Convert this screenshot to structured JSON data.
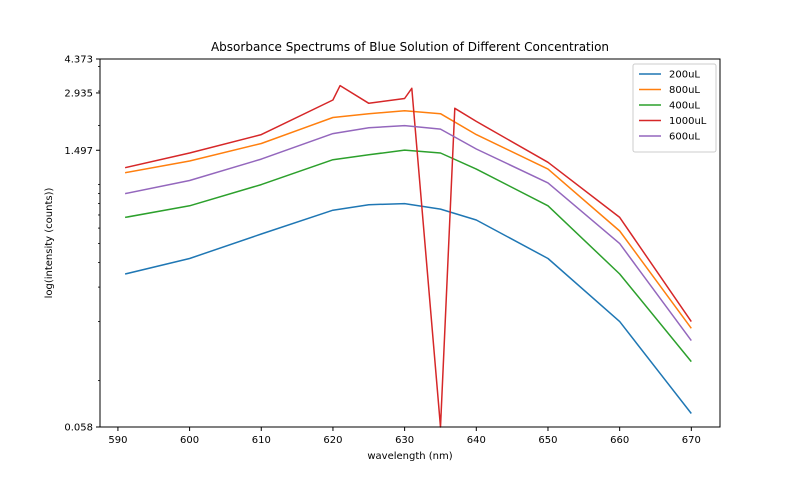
{
  "chart_data": {
    "type": "line",
    "title": "Absorbance Spectrums of Blue Solution of Different Concentration",
    "xlabel": "wavelength (nm)",
    "ylabel": "log(intensity (counts))",
    "xlim": [
      587.5,
      674
    ],
    "ylim": [
      0.058,
      4.373
    ],
    "yscale": "log",
    "xticks": [
      590,
      600,
      610,
      620,
      630,
      640,
      650,
      660,
      670
    ],
    "yticks": [
      0.058,
      1.497,
      2.935,
      4.373
    ],
    "ytick_labels": [
      "0.058",
      "1.497",
      "2.935",
      "4.373"
    ],
    "legend_position": "top-right",
    "grid": false,
    "series": [
      {
        "name": "200uL",
        "color": "#1f77b4",
        "x": [
          591,
          600,
          610,
          620,
          625,
          630,
          635,
          640,
          650,
          660,
          670
        ],
        "y": [
          0.35,
          0.42,
          0.56,
          0.74,
          0.79,
          0.8,
          0.75,
          0.66,
          0.42,
          0.2,
          0.068
        ]
      },
      {
        "name": "800uL",
        "color": "#ff7f0e",
        "x": [
          591,
          600,
          610,
          620,
          625,
          630,
          635,
          640,
          650,
          660,
          670
        ],
        "y": [
          1.15,
          1.32,
          1.62,
          2.2,
          2.3,
          2.38,
          2.3,
          1.8,
          1.2,
          0.58,
          0.185
        ]
      },
      {
        "name": "400uL",
        "color": "#2ca02c",
        "x": [
          591,
          600,
          610,
          620,
          625,
          630,
          635,
          640,
          650,
          660,
          670
        ],
        "y": [
          0.68,
          0.78,
          1.0,
          1.34,
          1.42,
          1.5,
          1.45,
          1.2,
          0.78,
          0.35,
          0.125
        ]
      },
      {
        "name": "1000uL",
        "color": "#d62728",
        "x": [
          591,
          600,
          610,
          620,
          621,
          625,
          630,
          631,
          635,
          637,
          640,
          650,
          660,
          670
        ],
        "y": [
          1.22,
          1.45,
          1.8,
          2.7,
          3.2,
          2.6,
          2.75,
          3.1,
          0.058,
          2.45,
          2.1,
          1.3,
          0.68,
          0.2
        ]
      },
      {
        "name": "600uL",
        "color": "#9467bd",
        "x": [
          591,
          600,
          610,
          620,
          625,
          630,
          635,
          640,
          650,
          660,
          670
        ],
        "y": [
          0.9,
          1.05,
          1.35,
          1.82,
          1.95,
          2.0,
          1.92,
          1.52,
          1.02,
          0.5,
          0.16
        ]
      }
    ]
  }
}
